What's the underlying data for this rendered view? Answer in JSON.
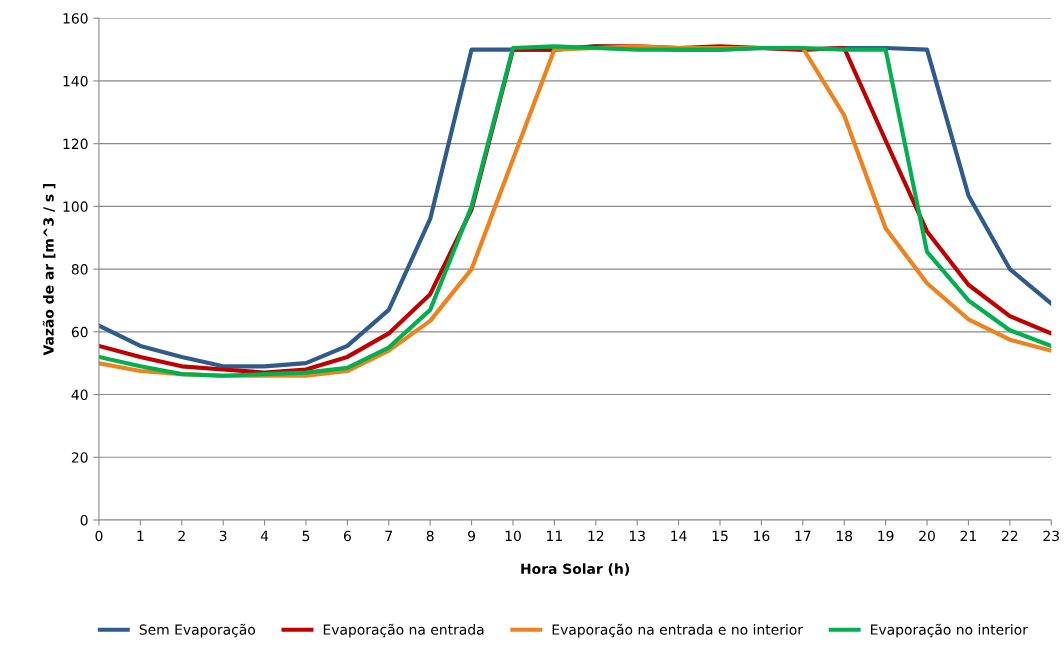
{
  "chart_data": {
    "type": "line",
    "xlabel": "Hora Solar (h)",
    "ylabel": "Vazão de ar [m^3 / s ]",
    "x": [
      0,
      1,
      2,
      3,
      4,
      5,
      6,
      7,
      8,
      9,
      10,
      11,
      12,
      13,
      14,
      15,
      16,
      17,
      18,
      19,
      20,
      21,
      22,
      23
    ],
    "xlim": [
      0,
      23
    ],
    "xticks": [
      0,
      1,
      2,
      3,
      4,
      5,
      6,
      7,
      8,
      9,
      10,
      11,
      12,
      13,
      14,
      15,
      16,
      17,
      18,
      19,
      20,
      21,
      22,
      23
    ],
    "ylim": [
      0,
      160
    ],
    "yticks": [
      0,
      20,
      40,
      60,
      80,
      100,
      120,
      140,
      160
    ],
    "grid": "y",
    "legend": "bottom",
    "marker": "none",
    "line_style": "solid",
    "series": [
      {
        "name": "Sem Evaporação",
        "color": "#2f5b8c",
        "values": [
          62,
          55.5,
          52,
          49,
          49,
          50,
          55.5,
          67,
          96,
          150,
          150,
          150,
          151,
          150.5,
          150,
          150,
          150.5,
          150,
          150.5,
          150.5,
          150,
          103.5,
          80,
          69
        ]
      },
      {
        "name": "Evaporação na entrada",
        "color": "#c00000",
        "values": [
          55.5,
          52,
          49,
          48,
          47,
          48,
          52,
          59.5,
          72,
          99,
          150,
          150,
          151,
          151,
          150.5,
          151,
          150.5,
          150,
          150.5,
          121,
          92,
          75,
          65,
          59.5
        ]
      },
      {
        "name": "Evaporação na entrada e no interior",
        "color": "#f0821e",
        "values": [
          50,
          47.5,
          46.5,
          46,
          46,
          46,
          47.5,
          54,
          63.5,
          80,
          115,
          150,
          150.5,
          151,
          150.5,
          150.5,
          150.5,
          150.5,
          129,
          93,
          75.5,
          64,
          57.5,
          54
        ]
      },
      {
        "name": "Evaporação no interior",
        "color": "#00b050",
        "values": [
          52,
          49,
          46.5,
          46,
          46.5,
          47,
          48.5,
          55,
          67,
          100,
          150.5,
          151,
          150.5,
          150,
          150,
          150,
          150.5,
          150.5,
          150,
          150,
          85.5,
          70,
          60.5,
          55.5
        ]
      }
    ]
  }
}
